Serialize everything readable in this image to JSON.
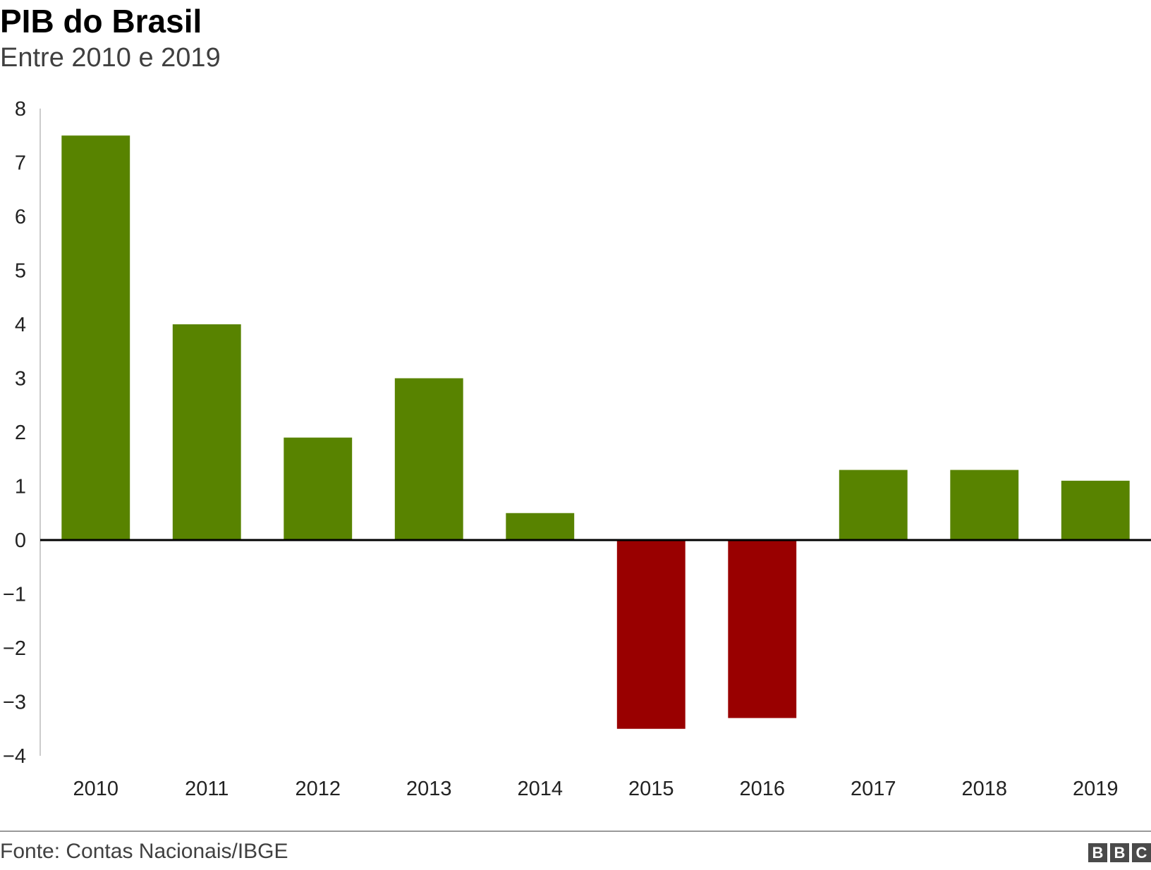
{
  "header": {
    "title": "PIB do Brasil",
    "subtitle": "Entre 2010 e 2019"
  },
  "footer": {
    "source": "Fonte: Contas Nacionais/IBGE",
    "logo_letters": [
      "B",
      "B",
      "C"
    ]
  },
  "colors": {
    "positive": "#588300",
    "negative": "#990000",
    "axis": "#000000",
    "gridline": "#cccccc"
  },
  "chart_data": {
    "type": "bar",
    "categories": [
      "2010",
      "2011",
      "2012",
      "2013",
      "2014",
      "2015",
      "2016",
      "2017",
      "2018",
      "2019"
    ],
    "values": [
      7.5,
      4.0,
      1.9,
      3.0,
      0.5,
      -3.5,
      -3.3,
      1.3,
      1.3,
      1.1
    ],
    "ylim": [
      -4,
      8
    ],
    "yticks": [
      "8",
      "7",
      "6",
      "5",
      "4",
      "3",
      "2",
      "1",
      "0",
      "−1",
      "−2",
      "−3",
      "−4"
    ],
    "ytick_values": [
      8,
      7,
      6,
      5,
      4,
      3,
      2,
      1,
      0,
      -1,
      -2,
      -3,
      -4
    ],
    "grid": false,
    "legend": "none"
  }
}
